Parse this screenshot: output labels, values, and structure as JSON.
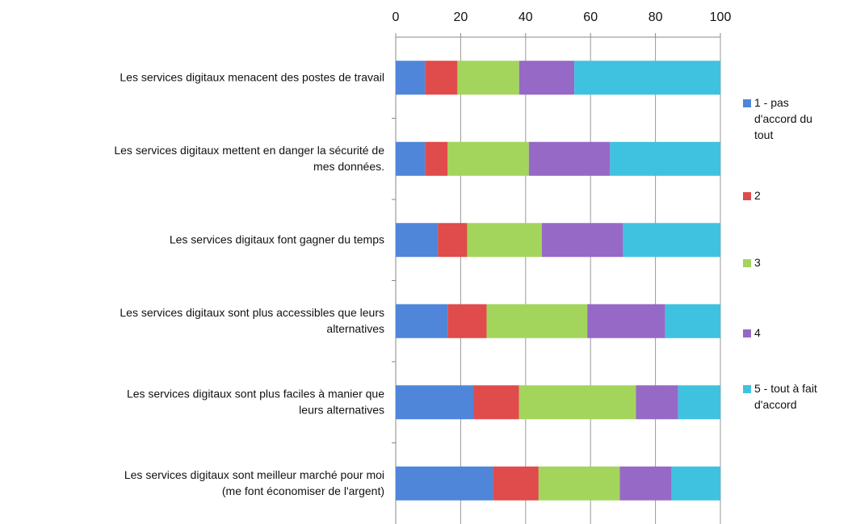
{
  "chart_data": {
    "type": "stacked-bar-horizontal",
    "categories": [
      "Les services digitaux menacent des postes de travail",
      "Les services digitaux mettent en danger la sécurité de\nmes données.",
      "Les services digitaux font gagner du temps",
      "Les services digitaux sont plus accessibles que leurs\nalternatives",
      "Les services digitaux sont plus faciles à manier que\nleurs alternatives",
      "Les services digitaux sont meilleur marché pour moi\n(me font économiser de l'argent)"
    ],
    "series": [
      {
        "name": "1 - pas\nd'accord du\ntout",
        "color": "#4f86d9",
        "values": [
          9,
          9,
          13,
          16,
          24,
          30
        ]
      },
      {
        "name": "2",
        "color": "#e04b4b",
        "values": [
          10,
          7,
          9,
          12,
          14,
          14
        ]
      },
      {
        "name": "3",
        "color": "#a3d55c",
        "values": [
          19,
          25,
          23,
          31,
          36,
          25
        ]
      },
      {
        "name": "4",
        "color": "#9669c6",
        "values": [
          17,
          25,
          25,
          24,
          13,
          16
        ]
      },
      {
        "name": "5 - tout à fait\nd'accord",
        "color": "#3fc2df",
        "values": [
          45,
          34,
          30,
          17,
          13,
          15
        ]
      }
    ],
    "xlim": [
      0,
      100
    ],
    "xticks": [
      0,
      20,
      40,
      60,
      80,
      100
    ],
    "grid": true,
    "legend": "right"
  }
}
